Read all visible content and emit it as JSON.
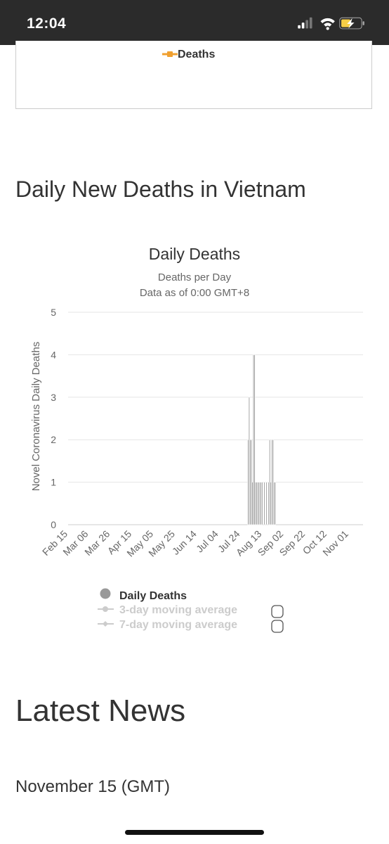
{
  "status_bar": {
    "time": "12:04"
  },
  "previous_chart": {
    "legend_label": "Deaths",
    "legend_color": "#f0a030"
  },
  "section": {
    "title": "Daily New Deaths in Vietnam"
  },
  "chart": {
    "title": "Daily Deaths",
    "subtitle_line1": "Deaths per Day",
    "subtitle_line2": "Data as of 0:00 GMT+8",
    "legend": {
      "daily": "Daily Deaths",
      "ma3": "3-day moving average",
      "ma7": "7-day moving average"
    }
  },
  "chart_data": {
    "type": "bar",
    "title": "Daily Deaths",
    "subtitle": "Deaths per Day / Data as of 0:00 GMT+8",
    "xlabel": "",
    "ylabel": "Novel Coronavirus Daily Deaths",
    "ylim": [
      0,
      5
    ],
    "yticks": [
      0,
      1,
      2,
      3,
      4,
      5
    ],
    "xticks": [
      "Feb 15",
      "Mar 06",
      "Mar 26",
      "Apr 15",
      "May 05",
      "May 25",
      "Jun 14",
      "Jul 04",
      "Jul 24",
      "Aug 13",
      "Sep 02",
      "Sep 22",
      "Oct 12",
      "Nov 01"
    ],
    "x_start": "Feb 15",
    "x_end": "Nov 14",
    "grid": true,
    "bar_color": "#a0a0a0",
    "series": [
      {
        "name": "Daily Deaths",
        "points": [
          {
            "x": "Jul 31",
            "y": 2
          },
          {
            "x": "Aug 01",
            "y": 3
          },
          {
            "x": "Aug 02",
            "y": 2
          },
          {
            "x": "Aug 03",
            "y": 2
          },
          {
            "x": "Aug 04",
            "y": 1
          },
          {
            "x": "Aug 05",
            "y": 4
          },
          {
            "x": "Aug 06",
            "y": 4
          },
          {
            "x": "Aug 07",
            "y": 1
          },
          {
            "x": "Aug 08",
            "y": 1
          },
          {
            "x": "Aug 09",
            "y": 1
          },
          {
            "x": "Aug 10",
            "y": 1
          },
          {
            "x": "Aug 11",
            "y": 1
          },
          {
            "x": "Aug 12",
            "y": 1
          },
          {
            "x": "Aug 13",
            "y": 1
          },
          {
            "x": "Aug 15",
            "y": 1
          },
          {
            "x": "Aug 17",
            "y": 1
          },
          {
            "x": "Aug 19",
            "y": 1
          },
          {
            "x": "Aug 20",
            "y": 2
          },
          {
            "x": "Aug 21",
            "y": 1
          },
          {
            "x": "Aug 22",
            "y": 2
          },
          {
            "x": "Aug 23",
            "y": 2
          },
          {
            "x": "Aug 24",
            "y": 1
          },
          {
            "x": "Aug 25",
            "y": 1
          }
        ]
      }
    ]
  },
  "news": {
    "heading": "Latest News",
    "date": "November 15 (GMT)"
  }
}
